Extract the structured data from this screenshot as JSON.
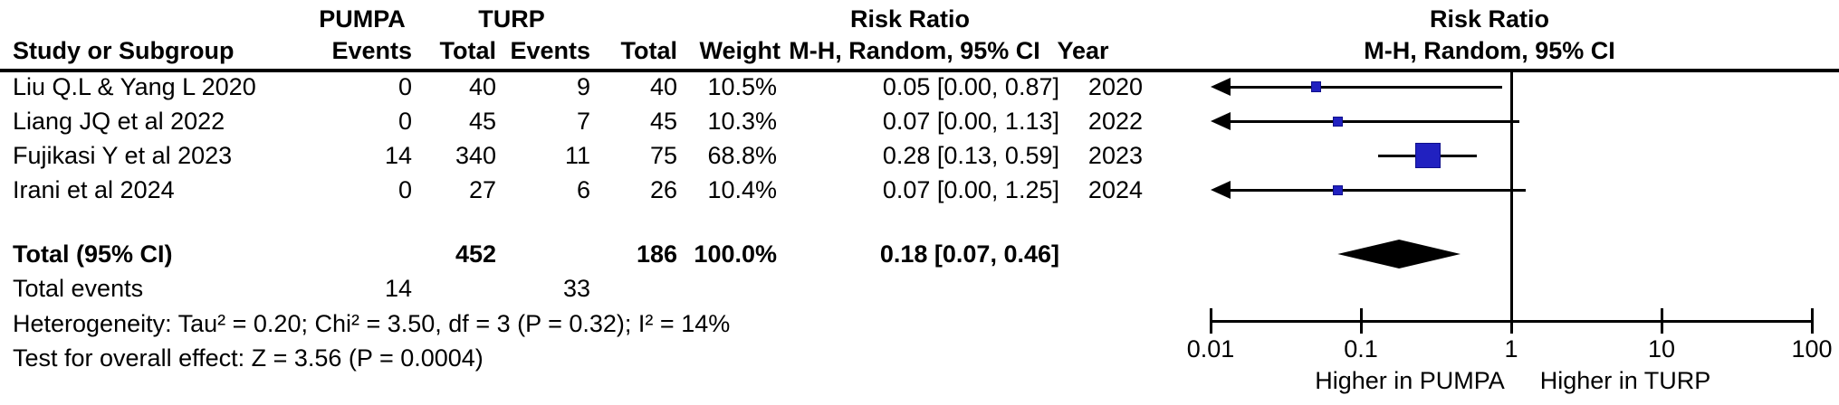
{
  "header": {
    "group1": "PUMPA",
    "group2": "TURP",
    "study_col": "Study or Subgroup",
    "events_col": "Events",
    "total_col": "Total",
    "weight_col": "Weight",
    "effect_col_title": "Risk Ratio",
    "effect_col_sub": "M-H, Random, 95% CI",
    "year_col": "Year",
    "plot_title": "Risk Ratio",
    "plot_sub": "M-H, Random, 95% CI"
  },
  "rows": [
    {
      "study": "Liu Q.L & Yang L 2020",
      "e1": "0",
      "t1": "40",
      "e2": "9",
      "t2": "40",
      "weight": "10.5%",
      "ci": "0.05 [0.00, 0.87]",
      "year": "2020"
    },
    {
      "study": "Liang JQ et al 2022",
      "e1": "0",
      "t1": "45",
      "e2": "7",
      "t2": "45",
      "weight": "10.3%",
      "ci": "0.07 [0.00, 1.13]",
      "year": "2022"
    },
    {
      "study": "Fujikasi Y et al 2023",
      "e1": "14",
      "t1": "340",
      "e2": "11",
      "t2": "75",
      "weight": "68.8%",
      "ci": "0.28 [0.13, 0.59]",
      "year": "2023"
    },
    {
      "study": "Irani et al 2024",
      "e1": "0",
      "t1": "27",
      "e2": "6",
      "t2": "26",
      "weight": "10.4%",
      "ci": "0.07 [0.00, 1.25]",
      "year": "2024"
    }
  ],
  "totals": {
    "label": "Total (95% CI)",
    "t1": "452",
    "t2": "186",
    "weight": "100.0%",
    "ci": "0.18 [0.07, 0.46]",
    "events_label": "Total events",
    "e1": "14",
    "e2": "33"
  },
  "stats": {
    "heterogeneity": "Heterogeneity: Tau² = 0.20; Chi² = 3.50, df = 3 (P = 0.32); I² = 14%",
    "overall": "Test for overall effect: Z = 3.56 (P = 0.0004)"
  },
  "axis": {
    "tick_labels": [
      "0.01",
      "0.1",
      "1",
      "10",
      "100"
    ],
    "left_label": "Higher in PUMPA",
    "right_label": "Higher in TURP"
  },
  "colors": {
    "marker": "#2121c0",
    "marker_border": "#10108c",
    "line": "#000000"
  },
  "chart_data": {
    "type": "forest",
    "effect_measure": "Risk Ratio",
    "method": "M-H, Random, 95% CI",
    "x_scale": "log",
    "x_range": [
      0.01,
      100
    ],
    "x_ticks": [
      0.01,
      0.1,
      1,
      10,
      100
    ],
    "null_line": 1,
    "studies": [
      {
        "name": "Liu Q.L & Yang L 2020",
        "year": "2020",
        "events_pumpa": 0,
        "total_pumpa": 40,
        "events_turp": 9,
        "total_turp": 40,
        "weight_pct": 10.5,
        "rr": 0.05,
        "ci_low": 0.0,
        "ci_high": 0.87
      },
      {
        "name": "Liang JQ et al 2022",
        "year": "2022",
        "events_pumpa": 0,
        "total_pumpa": 45,
        "events_turp": 7,
        "total_turp": 45,
        "weight_pct": 10.3,
        "rr": 0.07,
        "ci_low": 0.0,
        "ci_high": 1.13
      },
      {
        "name": "Fujikasi Y et al 2023",
        "year": "2023",
        "events_pumpa": 14,
        "total_pumpa": 340,
        "events_turp": 11,
        "total_turp": 75,
        "weight_pct": 68.8,
        "rr": 0.28,
        "ci_low": 0.13,
        "ci_high": 0.59
      },
      {
        "name": "Irani et al 2024",
        "year": "2024",
        "events_pumpa": 0,
        "total_pumpa": 27,
        "events_turp": 6,
        "total_turp": 26,
        "weight_pct": 10.4,
        "rr": 0.07,
        "ci_low": 0.0,
        "ci_high": 1.25
      }
    ],
    "overall": {
      "rr": 0.18,
      "ci_low": 0.07,
      "ci_high": 0.46,
      "total_pumpa": 452,
      "total_turp": 186,
      "weight_pct": 100.0,
      "events_pumpa": 14,
      "events_turp": 33,
      "heterogeneity": {
        "tau2": 0.2,
        "chi2": 3.5,
        "df": 3,
        "p": 0.32,
        "i2_pct": 14
      },
      "test_overall": {
        "z": 3.56,
        "p": 0.0004
      }
    }
  }
}
